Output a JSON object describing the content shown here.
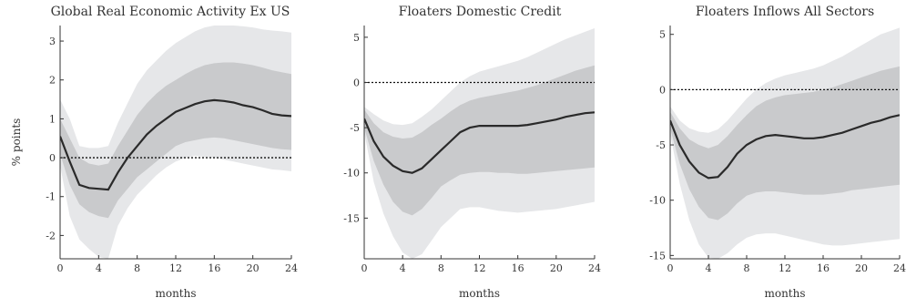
{
  "chart_data": [
    {
      "type": "area",
      "title": "Global Real Economic Activity Ex US",
      "xlabel": "months",
      "ylabel": "% points",
      "xlim": [
        0,
        24
      ],
      "ylim": [
        -2.6,
        3.4
      ],
      "xticks": [
        0,
        4,
        8,
        12,
        16,
        20,
        24
      ],
      "yticks": [
        -2,
        -1,
        0,
        1,
        2,
        3
      ],
      "x": [
        0,
        1,
        2,
        3,
        4,
        5,
        6,
        7,
        8,
        9,
        10,
        11,
        12,
        13,
        14,
        15,
        16,
        17,
        18,
        19,
        20,
        21,
        22,
        23,
        24
      ],
      "series": [
        {
          "role": "median",
          "values": [
            0.55,
            -0.1,
            -0.7,
            -0.78,
            -0.8,
            -0.82,
            -0.38,
            0.0,
            0.3,
            0.6,
            0.82,
            1.0,
            1.18,
            1.28,
            1.38,
            1.45,
            1.48,
            1.46,
            1.42,
            1.35,
            1.3,
            1.22,
            1.13,
            1.09,
            1.07
          ]
        },
        {
          "role": "inner-band-upper",
          "values": [
            1.0,
            0.5,
            0.0,
            -0.15,
            -0.2,
            -0.15,
            0.3,
            0.7,
            1.1,
            1.4,
            1.65,
            1.85,
            2.0,
            2.15,
            2.28,
            2.38,
            2.43,
            2.45,
            2.45,
            2.42,
            2.38,
            2.32,
            2.25,
            2.2,
            2.15
          ]
        },
        {
          "role": "inner-band-lower",
          "values": [
            0.1,
            -0.7,
            -1.2,
            -1.4,
            -1.5,
            -1.55,
            -1.1,
            -0.8,
            -0.5,
            -0.3,
            -0.1,
            0.1,
            0.3,
            0.4,
            0.45,
            0.5,
            0.52,
            0.5,
            0.45,
            0.4,
            0.35,
            0.3,
            0.25,
            0.22,
            0.2
          ]
        },
        {
          "role": "outer-band-upper",
          "values": [
            1.5,
            1.0,
            0.3,
            0.25,
            0.25,
            0.3,
            0.9,
            1.4,
            1.9,
            2.25,
            2.5,
            2.75,
            2.95,
            3.1,
            3.25,
            3.35,
            3.4,
            3.4,
            3.4,
            3.38,
            3.35,
            3.3,
            3.27,
            3.25,
            3.22
          ]
        },
        {
          "role": "outer-band-lower",
          "values": [
            -0.2,
            -1.5,
            -2.1,
            -2.35,
            -2.55,
            -2.6,
            -1.75,
            -1.3,
            -0.95,
            -0.7,
            -0.45,
            -0.25,
            -0.1,
            0.0,
            0.05,
            0.02,
            0.0,
            -0.05,
            -0.1,
            -0.15,
            -0.2,
            -0.25,
            -0.3,
            -0.32,
            -0.35
          ]
        }
      ]
    },
    {
      "type": "area",
      "title": "Floaters Domestic Credit",
      "xlabel": "months",
      "ylabel": "",
      "xlim": [
        0,
        24
      ],
      "ylim": [
        -19.5,
        6.3
      ],
      "xticks": [
        0,
        4,
        8,
        12,
        16,
        20,
        24
      ],
      "yticks": [
        -15,
        -10,
        -5,
        0,
        5
      ],
      "x": [
        0,
        1,
        2,
        3,
        4,
        5,
        6,
        7,
        8,
        9,
        10,
        11,
        12,
        13,
        14,
        15,
        16,
        17,
        18,
        19,
        20,
        21,
        22,
        23,
        24
      ],
      "series": [
        {
          "role": "median",
          "values": [
            -4.0,
            -6.5,
            -8.2,
            -9.2,
            -9.8,
            -10.0,
            -9.5,
            -8.5,
            -7.5,
            -6.5,
            -5.5,
            -5.0,
            -4.8,
            -4.8,
            -4.8,
            -4.8,
            -4.8,
            -4.7,
            -4.5,
            -4.3,
            -4.1,
            -3.8,
            -3.6,
            -3.4,
            -3.3
          ]
        },
        {
          "role": "inner-band-upper",
          "values": [
            -3.0,
            -4.5,
            -5.5,
            -6.0,
            -6.2,
            -6.1,
            -5.5,
            -4.7,
            -4.0,
            -3.2,
            -2.5,
            -2.0,
            -1.7,
            -1.5,
            -1.3,
            -1.1,
            -0.9,
            -0.6,
            -0.3,
            0.1,
            0.5,
            0.9,
            1.3,
            1.6,
            1.9
          ]
        },
        {
          "role": "inner-band-lower",
          "values": [
            -5.0,
            -8.7,
            -11.3,
            -13.2,
            -14.3,
            -14.7,
            -14.0,
            -12.8,
            -11.5,
            -10.8,
            -10.2,
            -10.0,
            -9.9,
            -9.9,
            -10.0,
            -10.0,
            -10.1,
            -10.1,
            -10.0,
            -9.9,
            -9.8,
            -9.7,
            -9.6,
            -9.5,
            -9.4
          ]
        },
        {
          "role": "outer-band-upper",
          "values": [
            -2.7,
            -3.5,
            -4.2,
            -4.6,
            -4.7,
            -4.5,
            -3.8,
            -3.0,
            -2.0,
            -1.0,
            0.0,
            0.7,
            1.2,
            1.5,
            1.8,
            2.1,
            2.4,
            2.8,
            3.3,
            3.8,
            4.3,
            4.8,
            5.2,
            5.6,
            6.0
          ]
        },
        {
          "role": "outer-band-lower",
          "values": [
            -5.5,
            -11.0,
            -14.5,
            -17.0,
            -18.8,
            -19.5,
            -19.0,
            -17.5,
            -16.0,
            -15.0,
            -14.0,
            -13.8,
            -13.8,
            -14.0,
            -14.2,
            -14.3,
            -14.4,
            -14.3,
            -14.2,
            -14.1,
            -14.0,
            -13.8,
            -13.6,
            -13.4,
            -13.2
          ]
        }
      ]
    },
    {
      "type": "area",
      "title": "Floaters Inflows All Sectors",
      "xlabel": "months",
      "ylabel": "",
      "xlim": [
        0,
        24
      ],
      "ylim": [
        -15.3,
        5.8
      ],
      "xticks": [
        0,
        4,
        8,
        12,
        16,
        20,
        24
      ],
      "yticks": [
        -15,
        -10,
        -5,
        0,
        5
      ],
      "x": [
        0,
        1,
        2,
        3,
        4,
        5,
        6,
        7,
        8,
        9,
        10,
        11,
        12,
        13,
        14,
        15,
        16,
        17,
        18,
        19,
        20,
        21,
        22,
        23,
        24
      ],
      "series": [
        {
          "role": "median",
          "values": [
            -2.8,
            -5.0,
            -6.5,
            -7.5,
            -8.0,
            -7.9,
            -7.0,
            -5.8,
            -5.0,
            -4.5,
            -4.2,
            -4.1,
            -4.2,
            -4.3,
            -4.4,
            -4.4,
            -4.3,
            -4.1,
            -3.9,
            -3.6,
            -3.3,
            -3.0,
            -2.8,
            -2.5,
            -2.3
          ]
        },
        {
          "role": "inner-band-upper",
          "values": [
            -2.0,
            -3.5,
            -4.5,
            -5.0,
            -5.3,
            -5.0,
            -4.2,
            -3.2,
            -2.3,
            -1.5,
            -1.0,
            -0.7,
            -0.5,
            -0.4,
            -0.3,
            -0.2,
            0.0,
            0.2,
            0.5,
            0.8,
            1.1,
            1.4,
            1.7,
            1.9,
            2.1
          ]
        },
        {
          "role": "inner-band-lower",
          "values": [
            -3.5,
            -6.7,
            -9.0,
            -10.6,
            -11.6,
            -11.8,
            -11.2,
            -10.3,
            -9.6,
            -9.3,
            -9.2,
            -9.2,
            -9.3,
            -9.4,
            -9.5,
            -9.5,
            -9.5,
            -9.4,
            -9.3,
            -9.1,
            -9.0,
            -8.9,
            -8.8,
            -8.7,
            -8.6
          ]
        },
        {
          "role": "outer-band-upper",
          "values": [
            -1.5,
            -2.8,
            -3.5,
            -3.8,
            -3.9,
            -3.6,
            -2.8,
            -1.8,
            -0.8,
            0.0,
            0.6,
            1.0,
            1.3,
            1.5,
            1.7,
            1.9,
            2.2,
            2.6,
            3.0,
            3.5,
            4.0,
            4.5,
            5.0,
            5.3,
            5.6
          ]
        },
        {
          "role": "outer-band-lower",
          "values": [
            -4.0,
            -8.5,
            -11.8,
            -14.0,
            -15.2,
            -15.3,
            -14.8,
            -14.0,
            -13.4,
            -13.1,
            -13.0,
            -13.0,
            -13.2,
            -13.4,
            -13.6,
            -13.8,
            -14.0,
            -14.1,
            -14.1,
            -14.0,
            -13.9,
            -13.8,
            -13.7,
            -13.6,
            -13.5
          ]
        }
      ]
    }
  ],
  "colors": {
    "outer_band": "#e6e7e9",
    "inner_band": "#c9cacc",
    "median_line": "#2a2a2a",
    "zero_line": "#111111",
    "axis": "#333333"
  }
}
